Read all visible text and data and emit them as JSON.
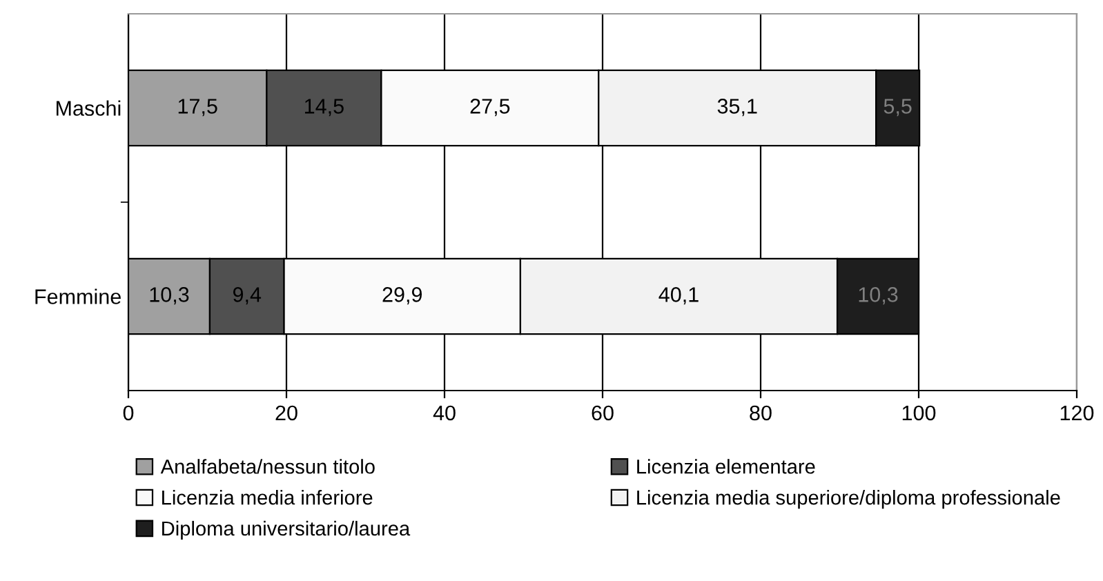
{
  "chart_data": {
    "type": "bar",
    "orientation": "horizontal",
    "stacked": true,
    "categories": [
      "Maschi",
      "Femmine"
    ],
    "series": [
      {
        "name": "Analfabeta/nessun titolo",
        "color": "#a0a0a0",
        "values": [
          17.5,
          10.3
        ],
        "value_labels": [
          "17,5",
          "10,3"
        ]
      },
      {
        "name": "Licenzia elementare",
        "color": "#505050",
        "values": [
          14.5,
          9.4
        ],
        "value_labels": [
          "14,5",
          "9,4"
        ]
      },
      {
        "name": "Licenzia media inferiore",
        "color": "#fafafa",
        "values": [
          27.5,
          29.9
        ],
        "value_labels": [
          "27,5",
          "29,9"
        ]
      },
      {
        "name": "Licenzia media superiore/diploma professionale",
        "color": "#f2f2f2",
        "values": [
          35.1,
          40.1
        ],
        "value_labels": [
          "35,1",
          "40,1"
        ]
      },
      {
        "name": "Diploma universitario/laurea",
        "color": "#1e1e1e",
        "values": [
          5.5,
          10.3
        ],
        "value_labels": [
          "5,5",
          "10,3"
        ]
      }
    ],
    "xlim": [
      0,
      120
    ],
    "xticks": [
      0,
      20,
      40,
      60,
      80,
      100,
      120
    ],
    "grid": "x",
    "legend": "bottom"
  }
}
